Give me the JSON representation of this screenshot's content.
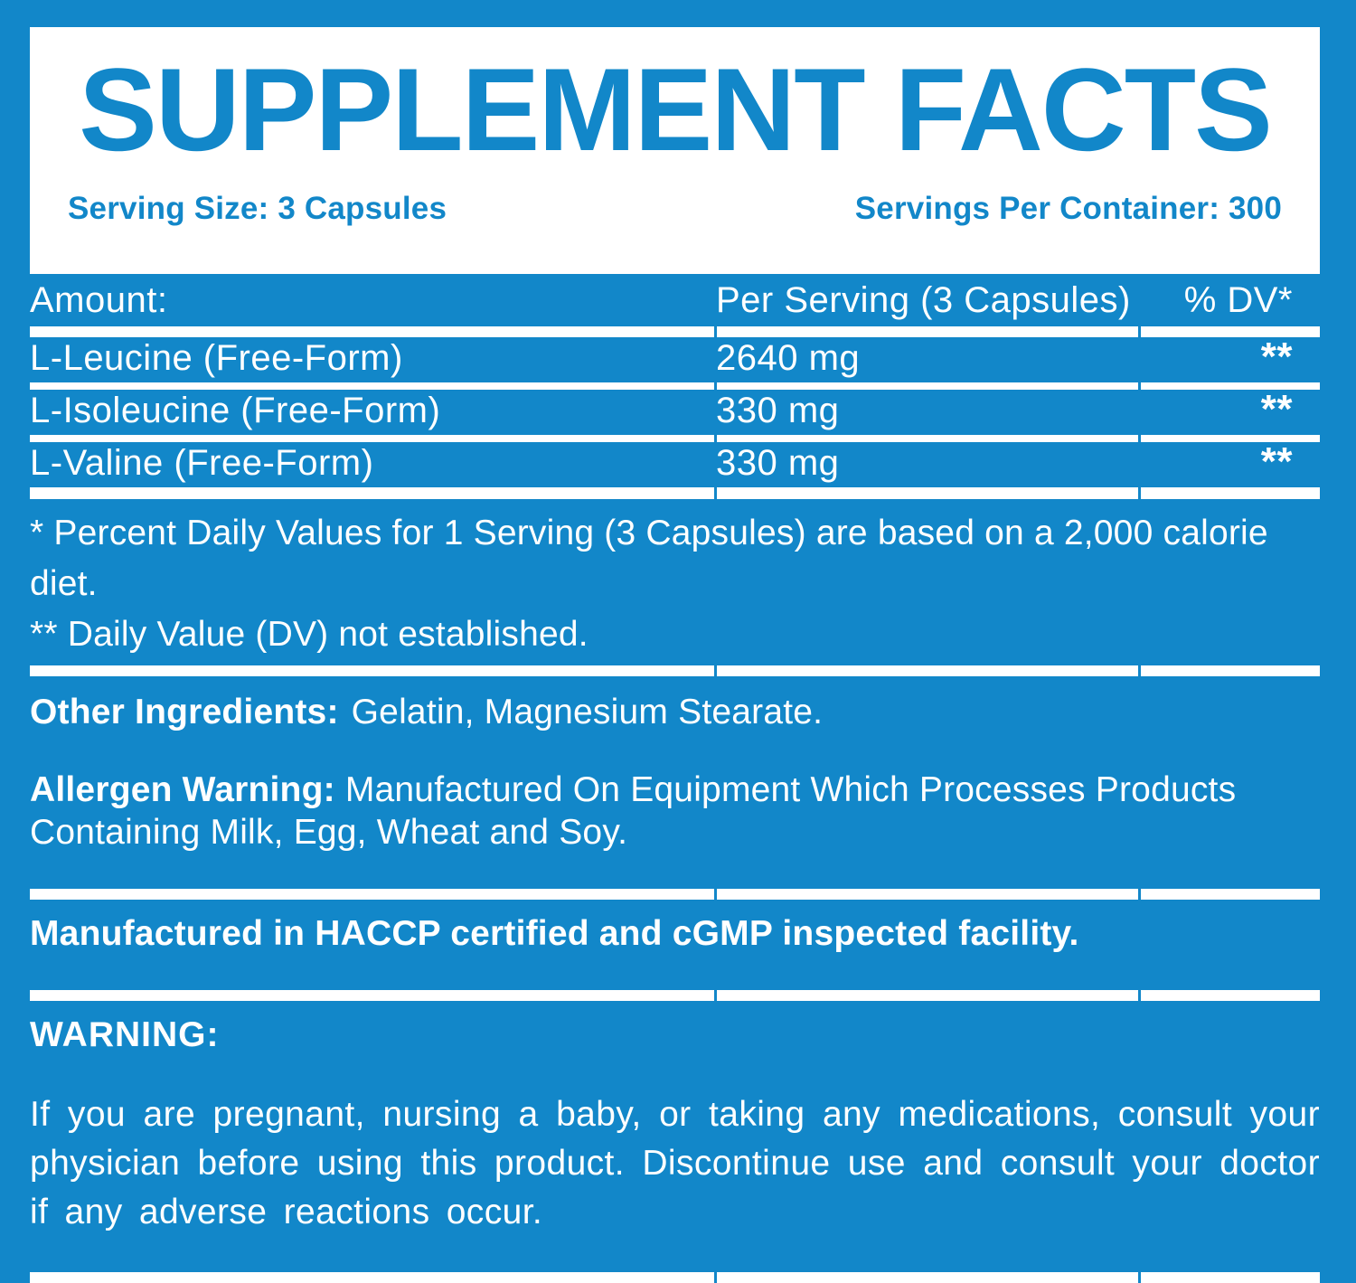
{
  "colors": {
    "accent_blue": "#1287c9",
    "text_white": "#ffffff"
  },
  "header": {
    "title": "SUPPLEMENT FACTS",
    "serving_size": "Serving Size: 3 Capsules",
    "servings_per_container": "Servings Per Container: 300"
  },
  "table": {
    "columns": [
      "Amount:",
      "Per Serving (3 Capsules)",
      "% DV*"
    ],
    "rows": [
      {
        "name": "L-Leucine (Free-Form)",
        "amount": "2640 mg",
        "dv": "**"
      },
      {
        "name": "L-Isoleucine (Free-Form)",
        "amount": "330 mg",
        "dv": "**"
      },
      {
        "name": "L-Valine (Free-Form)",
        "amount": "330 mg",
        "dv": "**"
      }
    ]
  },
  "footnotes": {
    "percent_dv": "* Percent Daily Values for 1 Serving (3 Capsules) are based on a 2,000 calorie diet.",
    "dv_not_established": "** Daily Value (DV) not established."
  },
  "other_ingredients": {
    "label": "Other Ingredients:",
    "value": "Gelatin, Magnesium Stearate."
  },
  "allergen": {
    "label": "Allergen Warning:",
    "value": " Manufactured On Equipment Which Processes Products Containing Milk, Egg, Wheat and Soy."
  },
  "manufacturing_note": "Manufactured in HACCP certified and cGMP inspected facility.",
  "warning": {
    "label": "WARNING:",
    "text": "If you are pregnant, nursing a baby, or taking any medications, consult your physician before using this product. Discontinue use and consult your doctor if any adverse reactions occur."
  }
}
